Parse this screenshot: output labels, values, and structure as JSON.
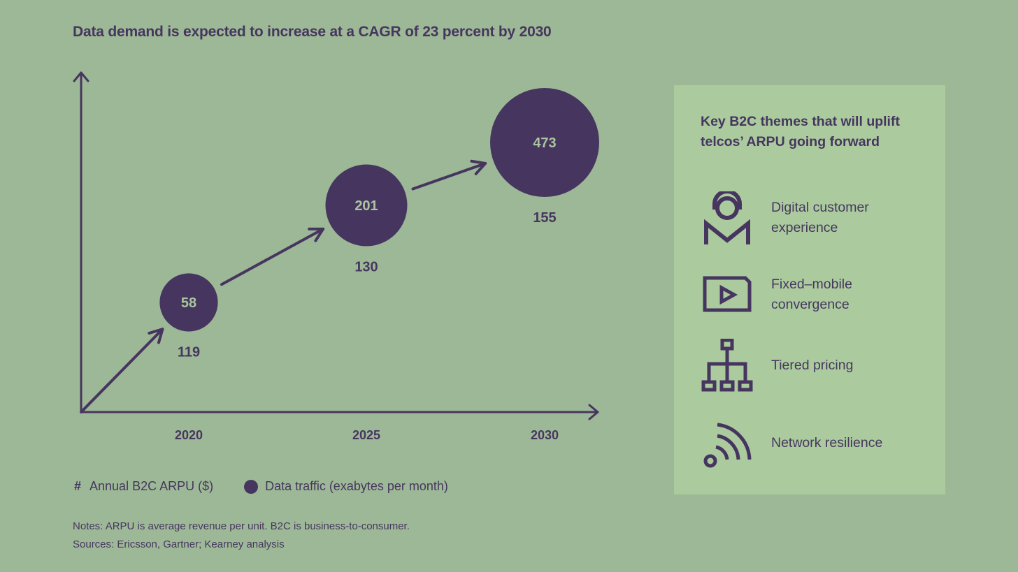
{
  "title": "Data demand is expected to increase at a CAGR of 23 percent by 2030",
  "chart_data": {
    "type": "bubble",
    "title": "Data demand is expected to increase at a CAGR of 23 percent by 2030",
    "categories": [
      "2020",
      "2025",
      "2030"
    ],
    "series": [
      {
        "name": "Data traffic (exabytes per month)",
        "values": [
          58,
          201,
          473
        ]
      },
      {
        "name": "Annual B2C ARPU ($)",
        "values": [
          119,
          130,
          155
        ]
      }
    ],
    "xlabel": "",
    "ylabel": "",
    "grid": false,
    "legend_placement": "bottom-left"
  },
  "legend": {
    "arpu_symbol": "#",
    "arpu_label": "Annual B2C ARPU ($)",
    "traffic_label": "Data traffic (exabytes per month)"
  },
  "notes": "Notes: ARPU is average revenue per unit. B2C is business-to-consumer.",
  "sources": "Sources: Ericsson, Gartner; Kearney analysis",
  "panel": {
    "heading": "Key B2C themes that will uplift telcos’ ARPU going forward",
    "themes": [
      {
        "icon": "customer-headset-icon",
        "label": "Digital customer experience"
      },
      {
        "icon": "video-play-icon",
        "label": "Fixed–mobile convergence"
      },
      {
        "icon": "hierarchy-icon",
        "label": "Tiered pricing"
      },
      {
        "icon": "wifi-signal-icon",
        "label": "Network resilience"
      }
    ]
  },
  "colors": {
    "background": "#9db896",
    "panel": "#abcb9e",
    "accent": "#46365f",
    "bubble_text": "#aac59f"
  }
}
